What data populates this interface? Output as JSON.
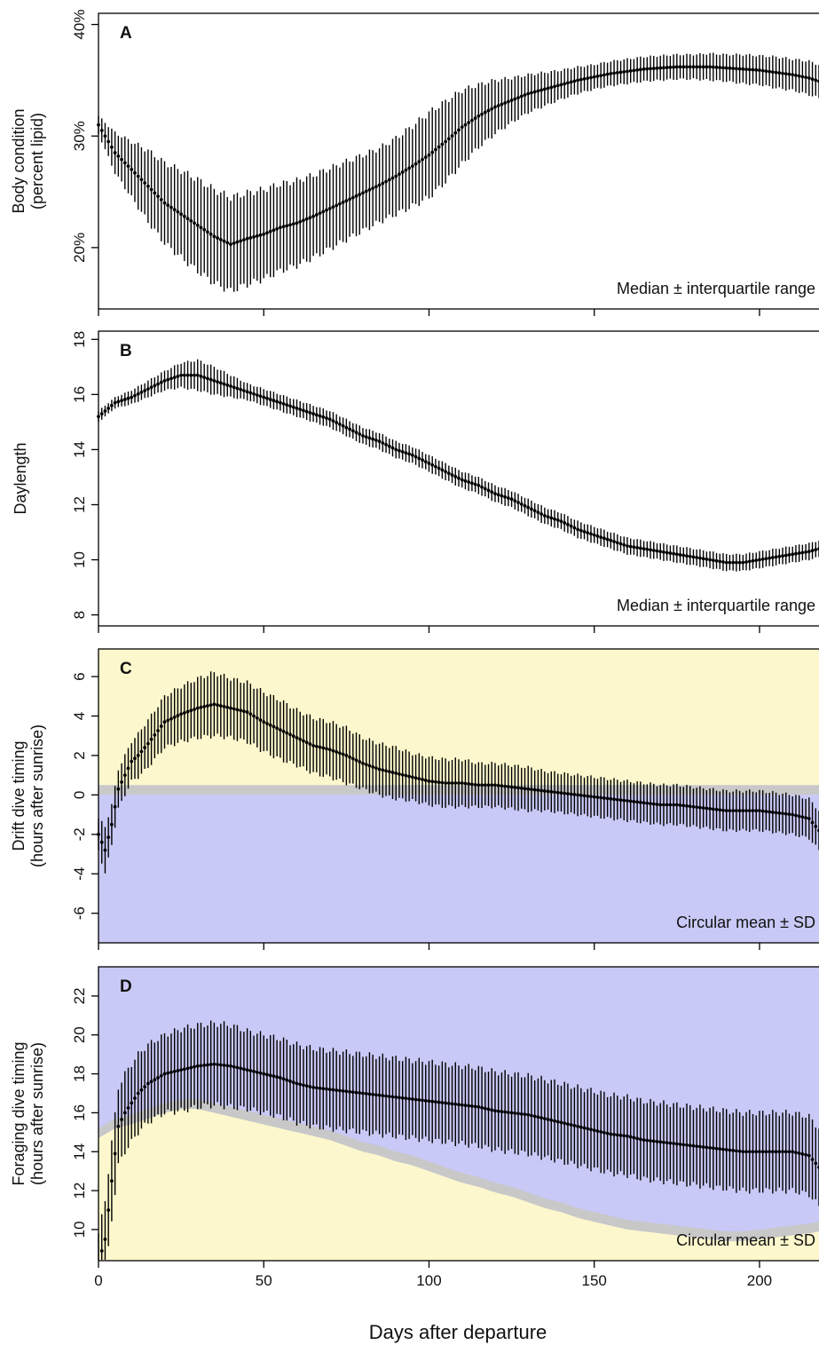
{
  "xlabel": "Days after departure",
  "xticks": [
    0,
    50,
    100,
    150,
    200
  ],
  "xlim": [
    0,
    218
  ],
  "colors": {
    "day": "#fcf7cc",
    "night": "#c9c9f7",
    "twilight": "#c8c8c8",
    "marker": "#000000"
  },
  "chart_data": [
    {
      "type": "scatter",
      "panel": "A",
      "ylabel_lines": [
        "Body condition",
        "(percent lipid)"
      ],
      "ylim": [
        14.5,
        41
      ],
      "yticks": [
        20,
        30,
        40
      ],
      "ytick_labels": [
        "20%",
        "30%",
        "40%"
      ],
      "note": "Median ± interquartile range",
      "background": "none",
      "x": [
        0,
        5,
        10,
        15,
        20,
        25,
        30,
        35,
        40,
        45,
        50,
        55,
        60,
        65,
        70,
        75,
        80,
        85,
        90,
        95,
        100,
        105,
        110,
        115,
        120,
        125,
        130,
        135,
        140,
        145,
        150,
        155,
        160,
        165,
        170,
        175,
        180,
        185,
        190,
        195,
        200,
        205,
        210,
        215,
        218
      ],
      "y": [
        31,
        28.5,
        27,
        25.5,
        24,
        23,
        22,
        21,
        20.3,
        20.8,
        21.2,
        21.8,
        22.2,
        22.8,
        23.5,
        24.2,
        24.9,
        25.6,
        26.4,
        27.3,
        28.3,
        29.5,
        30.8,
        31.8,
        32.6,
        33.2,
        33.8,
        34.2,
        34.6,
        35,
        35.3,
        35.6,
        35.8,
        36,
        36.1,
        36.2,
        36.2,
        36.2,
        36.1,
        36,
        35.9,
        35.7,
        35.5,
        35.2,
        34.9
      ],
      "spread": [
        0.8,
        1.8,
        2.5,
        3.2,
        3.6,
        3.9,
        4.1,
        4.2,
        4.2,
        4.1,
        4.0,
        3.9,
        3.8,
        3.7,
        3.6,
        3.5,
        3.4,
        3.3,
        3.4,
        3.6,
        3.8,
        3.6,
        3.3,
        2.8,
        2.4,
        2.0,
        1.7,
        1.5,
        1.3,
        1.2,
        1.1,
        1.1,
        1.1,
        1.1,
        1.1,
        1.1,
        1.1,
        1.2,
        1.2,
        1.3,
        1.3,
        1.4,
        1.4,
        1.5,
        1.5
      ]
    },
    {
      "type": "scatter",
      "panel": "B",
      "ylabel_lines": [
        "Daylength"
      ],
      "ylim": [
        7.6,
        18.3
      ],
      "yticks": [
        8,
        10,
        12,
        14,
        16,
        18
      ],
      "ytick_labels": [
        "8",
        "10",
        "12",
        "14",
        "16",
        "18"
      ],
      "note": "Median ± interquartile range",
      "background": "none",
      "x": [
        0,
        5,
        10,
        15,
        20,
        25,
        30,
        35,
        40,
        45,
        50,
        55,
        60,
        65,
        70,
        75,
        80,
        85,
        90,
        95,
        100,
        105,
        110,
        115,
        120,
        125,
        130,
        135,
        140,
        145,
        150,
        155,
        160,
        165,
        170,
        175,
        180,
        185,
        190,
        195,
        200,
        205,
        210,
        215,
        218
      ],
      "y": [
        15.2,
        15.7,
        15.9,
        16.2,
        16.5,
        16.7,
        16.7,
        16.5,
        16.3,
        16.1,
        15.9,
        15.7,
        15.5,
        15.3,
        15.1,
        14.8,
        14.5,
        14.3,
        14.0,
        13.8,
        13.5,
        13.2,
        12.9,
        12.7,
        12.4,
        12.2,
        11.9,
        11.6,
        11.4,
        11.1,
        10.9,
        10.7,
        10.5,
        10.4,
        10.3,
        10.2,
        10.1,
        10.0,
        9.9,
        9.9,
        10.0,
        10.1,
        10.2,
        10.3,
        10.4
      ],
      "spread": [
        0.2,
        0.2,
        0.25,
        0.3,
        0.35,
        0.45,
        0.55,
        0.5,
        0.4,
        0.3,
        0.3,
        0.3,
        0.3,
        0.3,
        0.3,
        0.3,
        0.3,
        0.3,
        0.3,
        0.3,
        0.3,
        0.3,
        0.3,
        0.3,
        0.3,
        0.3,
        0.3,
        0.3,
        0.3,
        0.3,
        0.3,
        0.3,
        0.3,
        0.3,
        0.3,
        0.3,
        0.3,
        0.3,
        0.3,
        0.3,
        0.3,
        0.3,
        0.3,
        0.3,
        0.3
      ]
    },
    {
      "type": "scatter",
      "panel": "C",
      "ylabel_lines": [
        "Drift dive timing",
        "(hours after sunrise)"
      ],
      "ylim": [
        -7.5,
        7.4
      ],
      "yticks": [
        -6,
        -4,
        -2,
        0,
        2,
        4,
        6
      ],
      "ytick_labels": [
        "-6",
        "-4",
        "-2",
        "0",
        "2",
        "4",
        "6"
      ],
      "note": "Circular mean ± SD",
      "background": "drift",
      "x": [
        0,
        2,
        4,
        6,
        8,
        10,
        12,
        15,
        20,
        25,
        30,
        35,
        40,
        45,
        50,
        55,
        60,
        65,
        70,
        75,
        80,
        85,
        90,
        95,
        100,
        105,
        110,
        115,
        120,
        125,
        130,
        135,
        140,
        145,
        150,
        155,
        160,
        165,
        170,
        175,
        180,
        185,
        190,
        195,
        200,
        205,
        210,
        215,
        218
      ],
      "y": [
        -2,
        -2.8,
        -1.5,
        0.3,
        1.0,
        1.7,
        2.0,
        2.6,
        3.7,
        4.1,
        4.4,
        4.6,
        4.4,
        4.2,
        3.7,
        3.3,
        2.9,
        2.5,
        2.3,
        2.0,
        1.6,
        1.3,
        1.1,
        0.9,
        0.7,
        0.6,
        0.6,
        0.5,
        0.5,
        0.4,
        0.3,
        0.2,
        0.1,
        0.0,
        -0.1,
        -0.2,
        -0.3,
        -0.4,
        -0.5,
        -0.5,
        -0.6,
        -0.7,
        -0.8,
        -0.8,
        -0.8,
        -0.9,
        -1.0,
        -1.2,
        -1.8
      ],
      "spread": [
        0.8,
        1.2,
        1.0,
        1.0,
        1.0,
        1.0,
        1.1,
        1.2,
        1.3,
        1.4,
        1.5,
        1.6,
        1.5,
        1.5,
        1.5,
        1.5,
        1.4,
        1.4,
        1.4,
        1.4,
        1.3,
        1.3,
        1.3,
        1.2,
        1.2,
        1.2,
        1.2,
        1.1,
        1.1,
        1.1,
        1.1,
        1.0,
        1.0,
        1.0,
        1.0,
        1.0,
        1.0,
        1.0,
        1.0,
        1.0,
        1.0,
        1.0,
        1.0,
        1.0,
        1.0,
        1.0,
        1.0,
        1.0,
        1.0
      ]
    },
    {
      "type": "scatter",
      "panel": "D",
      "ylabel_lines": [
        "Foraging dive timing",
        "(hours after sunrise)"
      ],
      "ylim": [
        8.4,
        23.5
      ],
      "yticks": [
        10,
        12,
        14,
        16,
        18,
        20,
        22
      ],
      "ytick_labels": [
        "10",
        "12",
        "14",
        "16",
        "18",
        "20",
        "22"
      ],
      "note": "Circular mean ± SD",
      "background": "foraging",
      "x": [
        0,
        2,
        4,
        6,
        8,
        10,
        12,
        15,
        20,
        25,
        30,
        35,
        40,
        45,
        50,
        55,
        60,
        65,
        70,
        75,
        80,
        85,
        90,
        95,
        100,
        105,
        110,
        115,
        120,
        125,
        130,
        135,
        140,
        145,
        150,
        155,
        160,
        165,
        170,
        175,
        180,
        185,
        190,
        195,
        200,
        205,
        210,
        215,
        218
      ],
      "y": [
        8.3,
        9.5,
        12.5,
        15.3,
        16.0,
        16.5,
        17.0,
        17.5,
        18.0,
        18.2,
        18.4,
        18.5,
        18.4,
        18.2,
        18.0,
        17.8,
        17.5,
        17.3,
        17.2,
        17.1,
        17.0,
        16.9,
        16.8,
        16.7,
        16.6,
        16.5,
        16.4,
        16.3,
        16.1,
        16.0,
        15.9,
        15.7,
        15.5,
        15.3,
        15.1,
        14.9,
        14.8,
        14.6,
        14.5,
        14.4,
        14.3,
        14.2,
        14.1,
        14.0,
        14.0,
        14.0,
        14.0,
        13.8,
        13.2
      ],
      "spread": [
        1.5,
        2.0,
        2.0,
        2.0,
        2.0,
        2.0,
        2.0,
        2.0,
        2.0,
        2.1,
        2.1,
        2.1,
        2.1,
        2.0,
        2.0,
        2.0,
        2.0,
        2.0,
        2.0,
        2.0,
        2.0,
        2.0,
        2.0,
        2.0,
        2.0,
        2.0,
        2.0,
        2.0,
        2.0,
        2.0,
        2.0,
        2.0,
        2.0,
        2.0,
        2.0,
        2.0,
        2.0,
        2.0,
        2.0,
        2.0,
        2.0,
        2.0,
        2.0,
        2.0,
        2.0,
        2.0,
        2.0,
        2.0,
        2.0
      ]
    }
  ]
}
